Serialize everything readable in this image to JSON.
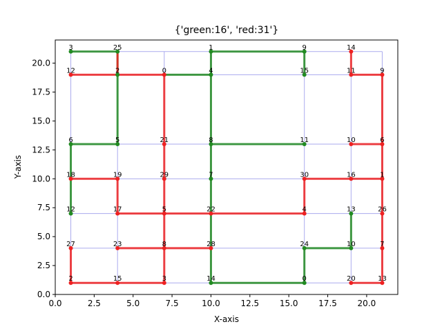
{
  "chart_data": {
    "type": "scatter",
    "title": "{'green:16', 'red:31'}",
    "xlabel": "X-axis",
    "ylabel": "Y-axis",
    "xlim": [
      0,
      22
    ],
    "ylim": [
      0,
      22
    ],
    "xticks": [
      "0.0",
      "2.5",
      "5.0",
      "7.5",
      "10.0",
      "12.5",
      "15.0",
      "17.5",
      "20.0"
    ],
    "yticks": [
      "0.0",
      "2.5",
      "5.0",
      "7.5",
      "10.0",
      "12.5",
      "15.0",
      "17.5",
      "20.0"
    ],
    "grid": false,
    "colors": {
      "grid_edge": "#aaaaee",
      "green": "#228b22",
      "red": "#ee2222"
    },
    "nodes": [
      {
        "x": 1,
        "y": 21,
        "label": "3",
        "color": "green"
      },
      {
        "x": 4,
        "y": 21,
        "label": "25",
        "color": "green"
      },
      {
        "x": 10,
        "y": 21,
        "label": "1",
        "color": "green"
      },
      {
        "x": 16,
        "y": 21,
        "label": "9",
        "color": "green"
      },
      {
        "x": 19,
        "y": 21,
        "label": "14",
        "color": "red"
      },
      {
        "x": 1,
        "y": 19,
        "label": "12",
        "color": "red"
      },
      {
        "x": 4,
        "y": 19,
        "label": "2",
        "color": "green"
      },
      {
        "x": 7,
        "y": 19,
        "label": "0",
        "color": "red"
      },
      {
        "x": 10,
        "y": 19,
        "label": "4",
        "color": "green"
      },
      {
        "x": 16,
        "y": 19,
        "label": "15",
        "color": "green"
      },
      {
        "x": 19,
        "y": 19,
        "label": "11",
        "color": "red"
      },
      {
        "x": 21,
        "y": 19,
        "label": "9",
        "color": "red"
      },
      {
        "x": 1,
        "y": 13,
        "label": "6",
        "color": "green"
      },
      {
        "x": 4,
        "y": 13,
        "label": "5",
        "color": "green"
      },
      {
        "x": 7,
        "y": 13,
        "label": "21",
        "color": "red"
      },
      {
        "x": 10,
        "y": 13,
        "label": "8",
        "color": "green"
      },
      {
        "x": 16,
        "y": 13,
        "label": "11",
        "color": "green"
      },
      {
        "x": 19,
        "y": 13,
        "label": "10",
        "color": "red"
      },
      {
        "x": 21,
        "y": 13,
        "label": "6",
        "color": "red"
      },
      {
        "x": 1,
        "y": 10,
        "label": "18",
        "color": "red"
      },
      {
        "x": 4,
        "y": 10,
        "label": "19",
        "color": "red"
      },
      {
        "x": 7,
        "y": 10,
        "label": "29",
        "color": "red"
      },
      {
        "x": 10,
        "y": 10,
        "label": "7",
        "color": "green"
      },
      {
        "x": 16,
        "y": 10,
        "label": "30",
        "color": "red"
      },
      {
        "x": 19,
        "y": 10,
        "label": "16",
        "color": "red"
      },
      {
        "x": 21,
        "y": 10,
        "label": "1",
        "color": "red"
      },
      {
        "x": 1,
        "y": 7,
        "label": "12",
        "color": "green"
      },
      {
        "x": 4,
        "y": 7,
        "label": "17",
        "color": "red"
      },
      {
        "x": 7,
        "y": 7,
        "label": "5",
        "color": "red"
      },
      {
        "x": 10,
        "y": 7,
        "label": "22",
        "color": "red"
      },
      {
        "x": 16,
        "y": 7,
        "label": "4",
        "color": "red"
      },
      {
        "x": 19,
        "y": 7,
        "label": "13",
        "color": "green"
      },
      {
        "x": 21,
        "y": 7,
        "label": "26",
        "color": "red"
      },
      {
        "x": 1,
        "y": 4,
        "label": "27",
        "color": "red"
      },
      {
        "x": 4,
        "y": 4,
        "label": "23",
        "color": "red"
      },
      {
        "x": 7,
        "y": 4,
        "label": "8",
        "color": "red"
      },
      {
        "x": 10,
        "y": 4,
        "label": "28",
        "color": "red"
      },
      {
        "x": 16,
        "y": 4,
        "label": "24",
        "color": "green"
      },
      {
        "x": 19,
        "y": 4,
        "label": "10",
        "color": "green"
      },
      {
        "x": 21,
        "y": 4,
        "label": "7",
        "color": "red"
      },
      {
        "x": 1,
        "y": 1,
        "label": "2",
        "color": "red"
      },
      {
        "x": 4,
        "y": 1,
        "label": "15",
        "color": "red"
      },
      {
        "x": 7,
        "y": 1,
        "label": "3",
        "color": "red"
      },
      {
        "x": 10,
        "y": 1,
        "label": "14",
        "color": "green"
      },
      {
        "x": 16,
        "y": 1,
        "label": "0",
        "color": "green"
      },
      {
        "x": 19,
        "y": 1,
        "label": "20",
        "color": "red"
      },
      {
        "x": 21,
        "y": 1,
        "label": "13",
        "color": "red"
      }
    ],
    "grid_edges": [
      [
        [
          1,
          21
        ],
        [
          21,
          21
        ]
      ],
      [
        [
          1,
          19
        ],
        [
          21,
          19
        ]
      ],
      [
        [
          1,
          13
        ],
        [
          21,
          13
        ]
      ],
      [
        [
          1,
          10
        ],
        [
          21,
          10
        ]
      ],
      [
        [
          1,
          7
        ],
        [
          21,
          7
        ]
      ],
      [
        [
          1,
          4
        ],
        [
          21,
          4
        ]
      ],
      [
        [
          1,
          1
        ],
        [
          21,
          1
        ]
      ],
      [
        [
          1,
          1
        ],
        [
          1,
          21
        ]
      ],
      [
        [
          4,
          1
        ],
        [
          4,
          21
        ]
      ],
      [
        [
          7,
          1
        ],
        [
          7,
          21
        ]
      ],
      [
        [
          10,
          1
        ],
        [
          10,
          21
        ]
      ],
      [
        [
          16,
          1
        ],
        [
          16,
          21
        ]
      ],
      [
        [
          19,
          1
        ],
        [
          19,
          21
        ]
      ],
      [
        [
          21,
          1
        ],
        [
          21,
          21
        ]
      ]
    ],
    "series": [
      {
        "color": "green",
        "segments": [
          [
            [
              1,
              21
            ],
            [
              4,
              21
            ]
          ],
          [
            [
              10,
              21
            ],
            [
              16,
              21
            ]
          ],
          [
            [
              4,
              21
            ],
            [
              4,
              19
            ]
          ],
          [
            [
              4,
              19
            ],
            [
              4,
              13
            ]
          ],
          [
            [
              7,
              19
            ],
            [
              10,
              19
            ]
          ],
          [
            [
              10,
              21
            ],
            [
              10,
              19
            ]
          ],
          [
            [
              10,
              19
            ],
            [
              10,
              13
            ]
          ],
          [
            [
              10,
              13
            ],
            [
              16,
              13
            ]
          ],
          [
            [
              10,
              13
            ],
            [
              10,
              10
            ]
          ],
          [
            [
              10,
              10
            ],
            [
              10,
              7
            ]
          ],
          [
            [
              10,
              7
            ],
            [
              10,
              4
            ]
          ],
          [
            [
              10,
              4
            ],
            [
              10,
              1
            ]
          ],
          [
            [
              10,
              1
            ],
            [
              16,
              1
            ]
          ],
          [
            [
              16,
              1
            ],
            [
              16,
              4
            ]
          ],
          [
            [
              16,
              4
            ],
            [
              19,
              4
            ]
          ],
          [
            [
              19,
              4
            ],
            [
              19,
              7
            ]
          ],
          [
            [
              1,
              13
            ],
            [
              4,
              13
            ]
          ],
          [
            [
              1,
              13
            ],
            [
              1,
              10
            ]
          ],
          [
            [
              1,
              10
            ],
            [
              1,
              7
            ]
          ],
          [
            [
              16,
              21
            ],
            [
              16,
              19
            ]
          ]
        ]
      },
      {
        "color": "red",
        "segments": [
          [
            [
              4,
              21
            ],
            [
              4,
              19
            ]
          ],
          [
            [
              1,
              19
            ],
            [
              7,
              19
            ]
          ],
          [
            [
              7,
              19
            ],
            [
              7,
              13
            ]
          ],
          [
            [
              7,
              13
            ],
            [
              7,
              10
            ]
          ],
          [
            [
              7,
              10
            ],
            [
              7,
              7
            ]
          ],
          [
            [
              7,
              7
            ],
            [
              7,
              4
            ]
          ],
          [
            [
              7,
              4
            ],
            [
              7,
              1
            ]
          ],
          [
            [
              1,
              1
            ],
            [
              7,
              1
            ]
          ],
          [
            [
              1,
              1
            ],
            [
              1,
              4
            ]
          ],
          [
            [
              4,
              4
            ],
            [
              10,
              4
            ]
          ],
          [
            [
              1,
              10
            ],
            [
              4,
              10
            ]
          ],
          [
            [
              4,
              10
            ],
            [
              4,
              7
            ]
          ],
          [
            [
              4,
              7
            ],
            [
              16,
              7
            ]
          ],
          [
            [
              16,
              7
            ],
            [
              16,
              10
            ]
          ],
          [
            [
              16,
              10
            ],
            [
              21,
              10
            ]
          ],
          [
            [
              19,
              13
            ],
            [
              21,
              13
            ]
          ],
          [
            [
              19,
              21
            ],
            [
              19,
              19
            ]
          ],
          [
            [
              19,
              19
            ],
            [
              21,
              19
            ]
          ],
          [
            [
              21,
              19
            ],
            [
              21,
              13
            ]
          ],
          [
            [
              21,
              13
            ],
            [
              21,
              10
            ]
          ],
          [
            [
              21,
              10
            ],
            [
              21,
              7
            ]
          ],
          [
            [
              21,
              7
            ],
            [
              21,
              4
            ]
          ],
          [
            [
              21,
              4
            ],
            [
              21,
              1
            ]
          ],
          [
            [
              19,
              1
            ],
            [
              21,
              1
            ]
          ]
        ]
      }
    ]
  }
}
